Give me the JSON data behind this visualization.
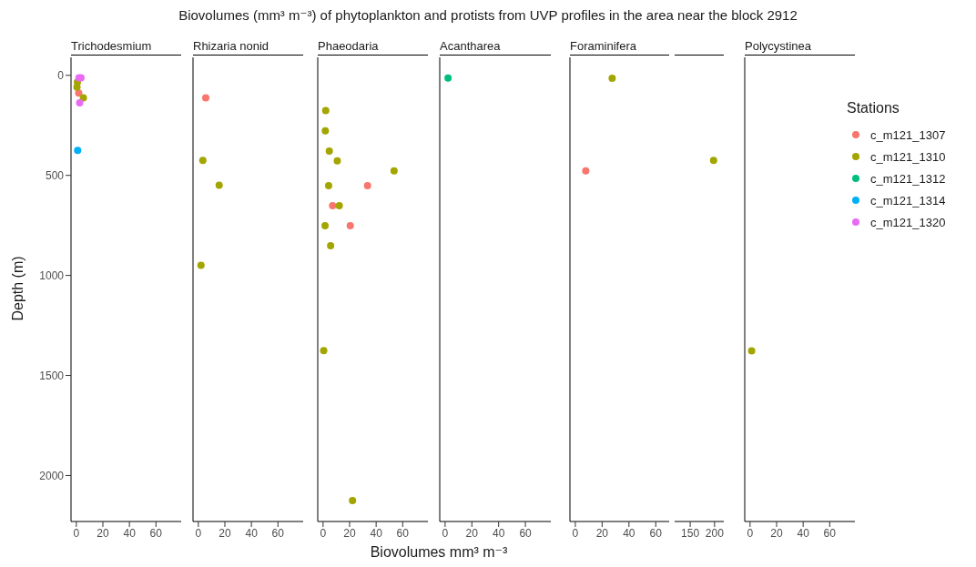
{
  "chart_data": [
    {
      "type": "scatter",
      "title": "Trichodesmium",
      "ylabel": "Depth (m)",
      "annotations": [
        "Biovolumes (mm³ m⁻³) of phytoplankton and protists from UVP profiles in the area near the block 2912"
      ],
      "xlim": [
        -4,
        79
      ],
      "xticks": [
        0,
        20,
        40,
        60
      ],
      "ylim": [
        2230,
        -90
      ],
      "yticks": [
        0,
        500,
        1000,
        1500,
        2000
      ],
      "marker": "circle",
      "series": [
        {
          "color": "#f8766d",
          "x": [
            1.8
          ],
          "values": [
            88
          ]
        },
        {
          "color": "#a3a500",
          "x": [
            0.8,
            0.5,
            5.3
          ],
          "values": [
            34,
            59,
            112
          ]
        },
        {
          "color": "#00b0f6",
          "x": [
            1
          ],
          "values": [
            375
          ]
        },
        {
          "color": "#e76bf3",
          "x": [
            2,
            3.5,
            2.5
          ],
          "values": [
            12,
            12,
            138
          ]
        }
      ]
    },
    {
      "type": "scatter",
      "title": "Rhizaria  nonid",
      "xlim": [
        -4,
        79
      ],
      "xticks": [
        0,
        20,
        40,
        60
      ],
      "ylim": [
        2230,
        -90
      ],
      "yticks": [
        0,
        500,
        1000,
        1500,
        2000
      ],
      "tick_labels": "x",
      "marker": "circle",
      "series": [
        {
          "color": "#f8766d",
          "x": [
            5.6
          ],
          "values": [
            112
          ]
        },
        {
          "color": "#a3a500",
          "x": [
            3.4,
            15.7,
            2
          ],
          "values": [
            425,
            549,
            949
          ]
        }
      ]
    },
    {
      "type": "scatter",
      "title": "Phaeodaria",
      "xlabel": "Biovolumes mm³ m⁻³",
      "xlim": [
        -4,
        79
      ],
      "xticks": [
        0,
        20,
        40,
        60
      ],
      "ylim": [
        2230,
        -90
      ],
      "yticks": [
        0,
        500,
        1000,
        1500,
        2000
      ],
      "tick_labels": "x",
      "marker": "circle",
      "series": [
        {
          "color": "#f8766d",
          "x": [
            33.5,
            7.2,
            20.5
          ],
          "values": [
            551,
            652,
            751
          ]
        },
        {
          "color": "#a3a500",
          "x": [
            2,
            1.7,
            4.7,
            10.7,
            53.5,
            4.2,
            12.2,
            1.5,
            5.7,
            0.5,
            22.2
          ],
          "values": [
            176,
            277,
            378,
            428,
            477,
            551,
            652,
            751,
            852,
            1376,
            2125
          ]
        }
      ]
    },
    {
      "type": "scatter",
      "title": "Acantharea",
      "xlim": [
        -4,
        79
      ],
      "xticks": [
        0,
        20,
        40,
        60
      ],
      "ylim": [
        2230,
        -90
      ],
      "yticks": [
        0,
        500,
        1000,
        1500,
        2000
      ],
      "tick_labels": "x",
      "marker": "circle",
      "series": [
        {
          "color": "#00bf7d",
          "x": [
            2.2
          ],
          "values": [
            14
          ]
        }
      ]
    },
    {
      "type": "scatter",
      "title": "Foraminifera",
      "xlim": [
        -4,
        70
      ],
      "xticks": [
        0,
        20,
        40,
        60
      ],
      "ylim": [
        2230,
        -90
      ],
      "yticks": [
        0,
        500,
        1000,
        1500,
        2000
      ],
      "tick_labels": "x",
      "marker": "circle",
      "series": [
        {
          "color": "#f8766d",
          "x": [
            7.8
          ],
          "values": [
            477
          ]
        },
        {
          "color": "#a3a500",
          "x": [
            27.5
          ],
          "values": [
            15
          ]
        }
      ]
    },
    {
      "type": "scatter",
      "xlim": [
        118,
        219
      ],
      "xticks": [
        150,
        200
      ],
      "ylim": [
        2230,
        -90
      ],
      "tick_labels": "x",
      "marker": "circle",
      "series": [
        {
          "color": "#a3a500",
          "x": [
            198
          ],
          "values": [
            425
          ]
        }
      ]
    },
    {
      "type": "scatter",
      "title": "Polycystinea",
      "xlim": [
        -4,
        79
      ],
      "xticks": [
        0,
        20,
        40,
        60
      ],
      "ylim": [
        2230,
        -90
      ],
      "yticks": [
        0,
        500,
        1000,
        1500,
        2000
      ],
      "tick_labels": "x",
      "marker": "circle",
      "legend": "right",
      "legend_title": "Stations",
      "series": [
        {
          "name": "c_m121_1307",
          "color": "#f8766d"
        },
        {
          "name": "c_m121_1310",
          "color": "#a3a500",
          "x": [
            1.2
          ],
          "values": [
            1377
          ]
        },
        {
          "name": "c_m121_1312",
          "color": "#00bf7d"
        },
        {
          "name": "c_m121_1314",
          "color": "#00b0f6"
        },
        {
          "name": "c_m121_1320",
          "color": "#e76bf3"
        }
      ]
    }
  ]
}
